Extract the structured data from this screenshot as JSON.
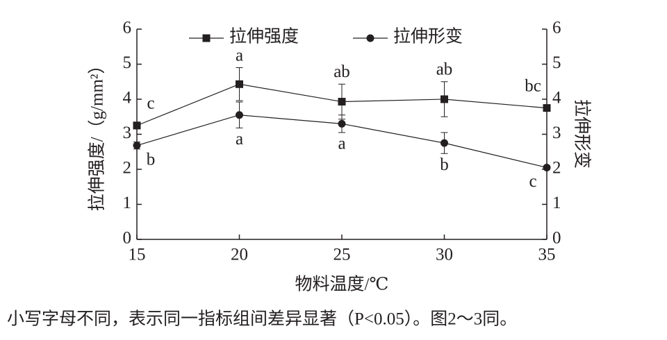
{
  "chart_data": {
    "type": "line",
    "x": [
      15,
      20,
      25,
      30,
      35
    ],
    "xlim": [
      15,
      35
    ],
    "xticks": [
      15,
      20,
      25,
      30,
      35
    ],
    "ylim": [
      0,
      6
    ],
    "yticks": [
      0,
      1,
      2,
      3,
      4,
      5,
      6
    ],
    "y2lim": [
      0,
      6
    ],
    "y2ticks": [
      0,
      1,
      2,
      3,
      4,
      5,
      6
    ],
    "xlabel": "物料温度/℃",
    "ylabel": "拉伸强度/（g/mm²）",
    "y2label": "拉伸形变",
    "note": "小写字母不同，表示同一指标组间差异显著（P<0.05）。图2～3同。",
    "series": [
      {
        "name": "拉伸强度",
        "color": "#231f20",
        "marker": "square",
        "values": [
          3.25,
          4.43,
          3.93,
          4.0,
          3.75
        ],
        "errors": [
          0.1,
          0.47,
          0.5,
          0.5,
          0.08
        ],
        "letters": [
          "c",
          "a",
          "ab",
          "ab",
          "bc"
        ]
      },
      {
        "name": "拉伸形变",
        "color": "#231f20",
        "marker": "circle",
        "axis": "y2",
        "values": [
          2.68,
          3.55,
          3.3,
          2.75,
          2.05
        ],
        "errors": [
          0.1,
          0.37,
          0.25,
          0.3,
          0.05
        ],
        "letters": [
          "b",
          "a",
          "a",
          "b",
          "c"
        ]
      }
    ]
  }
}
